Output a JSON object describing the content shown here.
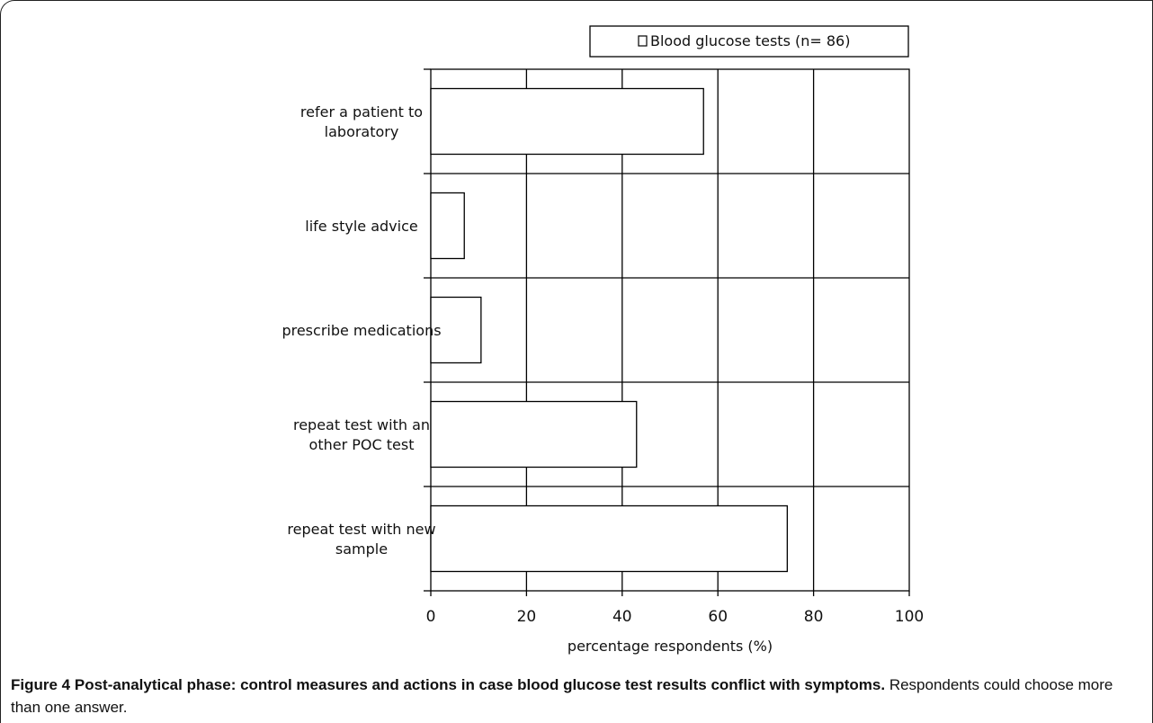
{
  "chart_data": {
    "type": "bar",
    "orientation": "horizontal",
    "categories": [
      [
        "refer a patient to",
        "laboratory"
      ],
      [
        "life style advice"
      ],
      [
        "prescribe medications"
      ],
      [
        "repeat test with an",
        "other POC test"
      ],
      [
        "repeat test with new",
        "sample"
      ]
    ],
    "series": [
      {
        "name": "Blood glucose tests (n= 86)",
        "values": [
          57,
          7,
          10.5,
          43,
          74.5
        ]
      }
    ],
    "xlabel": "percentage respondents (%)",
    "xlim": [
      0,
      100
    ],
    "xticks": [
      0,
      20,
      40,
      60,
      80,
      100
    ],
    "grid": true,
    "legend": "top-right",
    "bar_color": "#ffffff",
    "line_color": "#000000"
  },
  "caption": {
    "label": "Figure 4",
    "title": "Post-analytical phase: control measures and actions in case blood glucose test results conflict with symptoms.",
    "text": "Respondents could choose more than one answer."
  }
}
